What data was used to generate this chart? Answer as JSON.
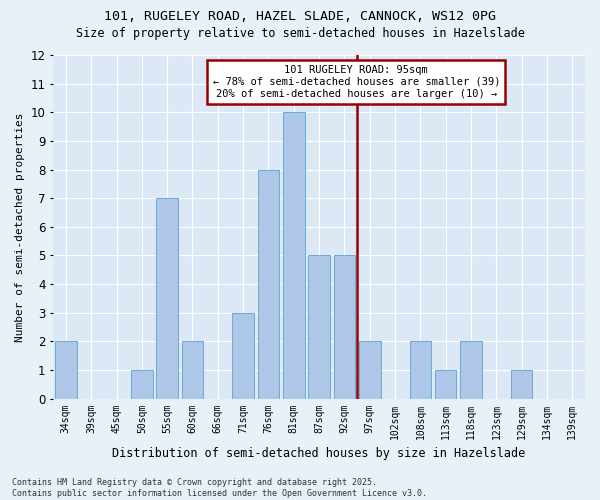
{
  "title1": "101, RUGELEY ROAD, HAZEL SLADE, CANNOCK, WS12 0PG",
  "title2": "Size of property relative to semi-detached houses in Hazelslade",
  "xlabel": "Distribution of semi-detached houses by size in Hazelslade",
  "ylabel": "Number of semi-detached properties",
  "categories": [
    "34sqm",
    "39sqm",
    "45sqm",
    "50sqm",
    "55sqm",
    "60sqm",
    "66sqm",
    "71sqm",
    "76sqm",
    "81sqm",
    "87sqm",
    "92sqm",
    "97sqm",
    "102sqm",
    "108sqm",
    "113sqm",
    "118sqm",
    "123sqm",
    "129sqm",
    "134sqm",
    "139sqm"
  ],
  "values": [
    2,
    0,
    0,
    1,
    7,
    2,
    0,
    3,
    8,
    10,
    5,
    5,
    2,
    0,
    2,
    1,
    2,
    0,
    1,
    0,
    0
  ],
  "bar_color": "#aec6e8",
  "bar_edgecolor": "#6aaad4",
  "vline_x": 11.5,
  "vline_color": "#990000",
  "ylim": [
    0,
    12
  ],
  "yticks": [
    0,
    1,
    2,
    3,
    4,
    5,
    6,
    7,
    8,
    9,
    10,
    11,
    12
  ],
  "annotation_title": "101 RUGELEY ROAD: 95sqm",
  "annotation_line1": "← 78% of semi-detached houses are smaller (39)",
  "annotation_line2": "20% of semi-detached houses are larger (10) →",
  "annotation_box_color": "#990000",
  "footnote": "Contains HM Land Registry data © Crown copyright and database right 2025.\nContains public sector information licensed under the Open Government Licence v3.0.",
  "bg_color": "#e8f0f8",
  "plot_bg": "#dce8f5",
  "title1_fontsize": 9.5,
  "title2_fontsize": 8.5
}
